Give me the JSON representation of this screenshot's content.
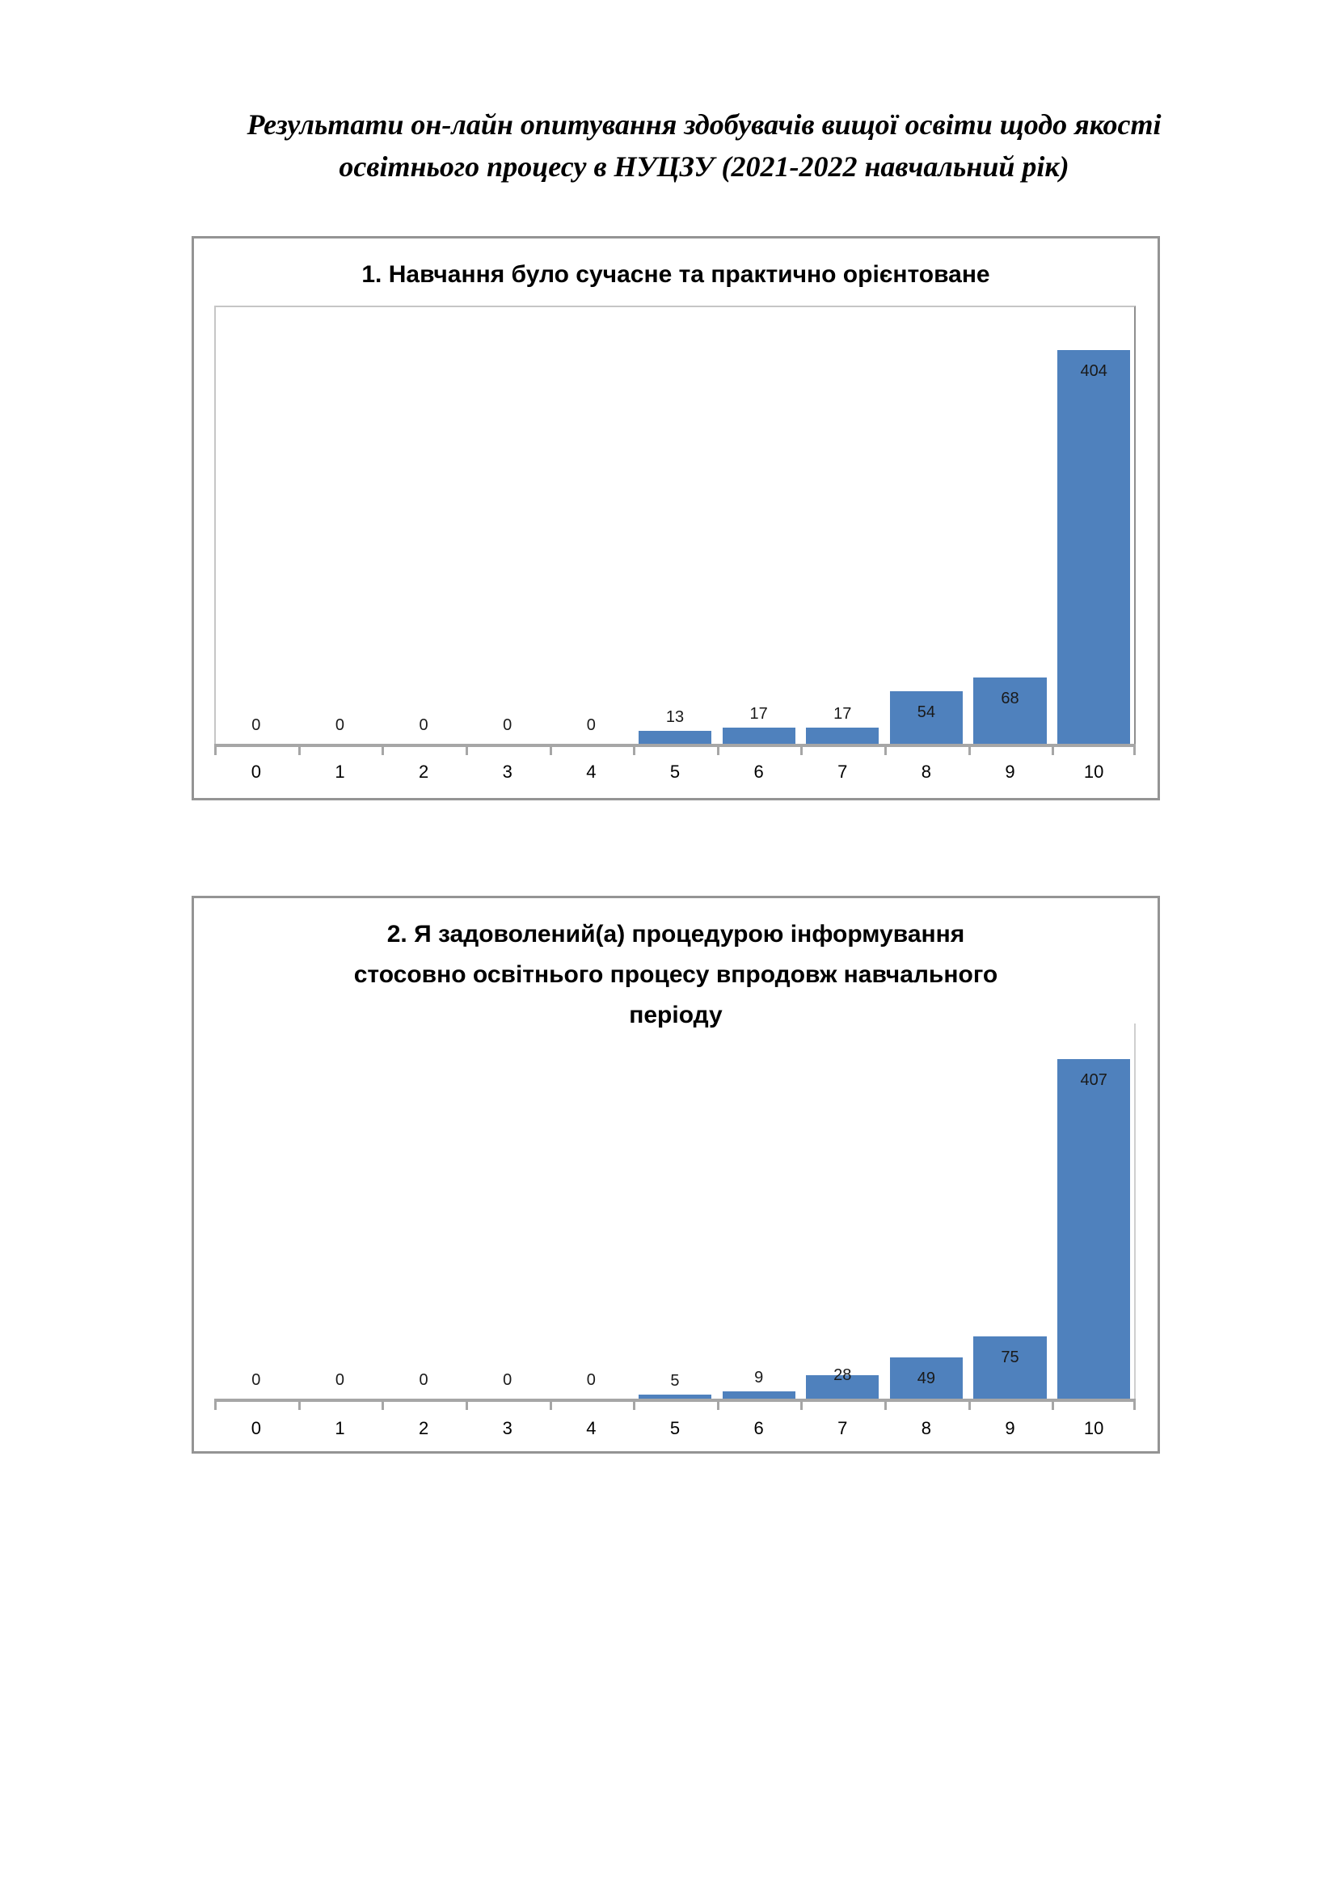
{
  "page": {
    "background": "#FFFFFF",
    "title": "Результати он-лайн опитування здобувачів вищої освіти щодо якості освітнього процесу в НУЦЗУ (2021-2022 навчальний рік)",
    "title_lines": [
      "Результати он-лайн опитування здобувачів вищої освіти щодо якості",
      "освітнього процесу в НУЦЗУ (2021-2022 навчальний рік)"
    ]
  },
  "colors": {
    "bar_fill": "#4F81BD",
    "chart_border": "#949494",
    "axis_line": "#A6A6A6",
    "plot_border": "#C6C6C6",
    "title_text": "#000000",
    "data_label_text": "#1A1A1A"
  },
  "chart_data": [
    {
      "type": "bar",
      "title": "1. Навчання було сучасне та практично орієнтоване",
      "title_lines": [
        "1. Навчання було сучасне та практично орієнтоване"
      ],
      "categories": [
        "0",
        "1",
        "2",
        "3",
        "4",
        "5",
        "6",
        "7",
        "8",
        "9",
        "10"
      ],
      "values": [
        0,
        0,
        0,
        0,
        0,
        13,
        17,
        17,
        54,
        68,
        404
      ],
      "data_labels_shown": true,
      "xlabel": "",
      "ylabel": "",
      "ylim": [
        0,
        450
      ],
      "grid": false,
      "legend": "none",
      "bar_color": "#4F81BD"
    },
    {
      "type": "bar",
      "title": "2. Я задоволений(а) процедурою інформування стосовно освітнього процесу впродовж навчального періоду",
      "title_lines": [
        "2. Я задоволений(а) процедурою інформування",
        "стосовно освітнього процесу впродовж навчального",
        "періоду"
      ],
      "categories": [
        "0",
        "1",
        "2",
        "3",
        "4",
        "5",
        "6",
        "7",
        "8",
        "9",
        "10"
      ],
      "values": [
        0,
        0,
        0,
        0,
        0,
        5,
        9,
        28,
        49,
        75,
        407
      ],
      "data_labels_shown": true,
      "xlabel": "",
      "ylabel": "",
      "ylim": [
        0,
        450
      ],
      "grid": false,
      "legend": "none",
      "bar_color": "#4F81BD"
    }
  ]
}
